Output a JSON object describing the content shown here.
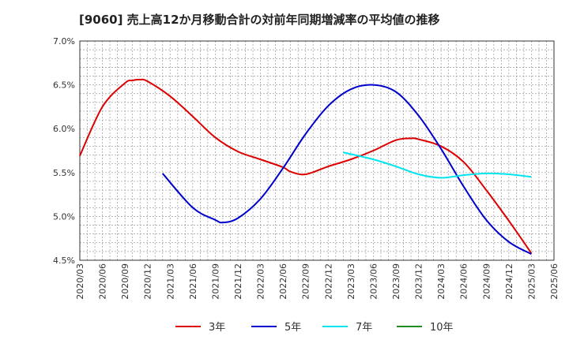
{
  "chart_data": {
    "type": "line",
    "title": "[9060]  売上高12か月移動合計の対前年同期増減率の平均値の推移",
    "xlabel": "",
    "ylabel": "",
    "ylim": [
      4.5,
      7.0
    ],
    "y_ticks": [
      "7.0%",
      "6.5%",
      "6.0%",
      "5.5%",
      "5.0%",
      "4.5%"
    ],
    "y_tick_values": [
      7.0,
      6.5,
      6.0,
      5.5,
      5.0,
      4.5
    ],
    "x_ticks": [
      "2020/03",
      "2020/06",
      "2020/09",
      "2020/12",
      "2021/03",
      "2021/06",
      "2021/09",
      "2021/12",
      "2022/03",
      "2022/06",
      "2022/09",
      "2022/12",
      "2023/03",
      "2023/06",
      "2023/09",
      "2023/12",
      "2024/03",
      "2024/06",
      "2024/09",
      "2024/12",
      "2025/03",
      "2025/06"
    ],
    "grid": true,
    "legend_position": "bottom",
    "series": [
      {
        "name": "3年",
        "color": "#dd0000",
        "values": [
          [
            "2020/03",
            5.69
          ],
          [
            "2020/06",
            6.25
          ],
          [
            "2020/09",
            6.52
          ],
          [
            "2020/10",
            6.55
          ],
          [
            "2020/11",
            6.56
          ],
          [
            "2020/12",
            6.54
          ],
          [
            "2021/03",
            6.37
          ],
          [
            "2021/06",
            6.14
          ],
          [
            "2021/09",
            5.9
          ],
          [
            "2021/12",
            5.74
          ],
          [
            "2022/03",
            5.65
          ],
          [
            "2022/06",
            5.56
          ],
          [
            "2022/07",
            5.51
          ],
          [
            "2022/09",
            5.48
          ],
          [
            "2022/12",
            5.57
          ],
          [
            "2023/03",
            5.65
          ],
          [
            "2023/06",
            5.75
          ],
          [
            "2023/09",
            5.87
          ],
          [
            "2023/11",
            5.89
          ],
          [
            "2023/12",
            5.88
          ],
          [
            "2024/03",
            5.8
          ],
          [
            "2024/06",
            5.62
          ],
          [
            "2024/09",
            5.3
          ],
          [
            "2024/12",
            4.95
          ],
          [
            "2025/03",
            4.58
          ]
        ]
      },
      {
        "name": "5年",
        "color": "#0000cc",
        "values": [
          [
            "2021/02",
            5.49
          ],
          [
            "2021/06",
            5.1
          ],
          [
            "2021/09",
            4.96
          ],
          [
            "2021/10",
            4.93
          ],
          [
            "2021/12",
            4.98
          ],
          [
            "2022/03",
            5.2
          ],
          [
            "2022/06",
            5.55
          ],
          [
            "2022/09",
            5.94
          ],
          [
            "2022/12",
            6.26
          ],
          [
            "2023/03",
            6.45
          ],
          [
            "2023/06",
            6.5
          ],
          [
            "2023/09",
            6.42
          ],
          [
            "2023/12",
            6.15
          ],
          [
            "2024/03",
            5.77
          ],
          [
            "2024/06",
            5.34
          ],
          [
            "2024/09",
            4.96
          ],
          [
            "2024/12",
            4.71
          ],
          [
            "2025/03",
            4.57
          ]
        ]
      },
      {
        "name": "7年",
        "color": "#00e5ee",
        "values": [
          [
            "2023/02",
            5.73
          ],
          [
            "2023/06",
            5.65
          ],
          [
            "2023/09",
            5.57
          ],
          [
            "2023/12",
            5.48
          ],
          [
            "2024/03",
            5.44
          ],
          [
            "2024/06",
            5.47
          ],
          [
            "2024/09",
            5.49
          ],
          [
            "2024/12",
            5.48
          ],
          [
            "2025/03",
            5.45
          ]
        ]
      },
      {
        "name": "10年",
        "color": "#228B22",
        "values": []
      }
    ]
  }
}
